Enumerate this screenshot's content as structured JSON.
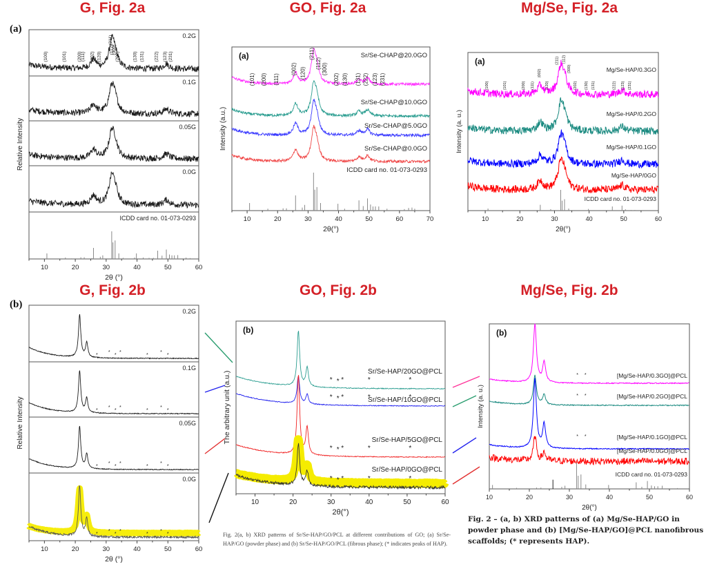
{
  "section_titles": {
    "g_2a": "G, Fig. 2a",
    "go_2a": "GO, Fig. 2a",
    "mgse_2a": "Mg/Se, Fig. 2a",
    "g_2b": "G, Fig. 2b",
    "go_2b": "GO, Fig. 2b",
    "mgse_2b": "Mg/Se, Fig. 2b"
  },
  "captions": {
    "go": "Fig. 2(a, b) XRD patterns of Sr/Se-HAP/GO/PCL at different contributions of GO; (a) Sr/Se-HAP/GO (powder phase) and (b) Sr/Se-HAP/GO/PCL (fibrous phase); (* indicates peaks of HAP).",
    "mgse": "Fig. 2 – (a, b) XRD patterns of (a) Mg/Se-HAP/GO in powder phase and (b) [Mg/Se-HAP/GO]@PCL nanofibrous scaffolds; (* represents HAP)."
  },
  "colors": {
    "title_red": "#d42027",
    "magenta": "#ff33ff",
    "teal": "#2a8f85",
    "blue": "#1f1fe6",
    "red": "#f01818",
    "highlight_yellow": "#f5ec00",
    "black": "#1a1a1a"
  },
  "chart_data": [
    {
      "id": "g_2a",
      "type": "line",
      "panel_label": "(a)",
      "xlabel": "2θ (°)",
      "ylabel": "Relative Intensity",
      "xlim": [
        5,
        60
      ],
      "xticks": [
        10,
        20,
        30,
        40,
        50,
        60
      ],
      "stacked_panels": true,
      "series": [
        {
          "name": "0.2G",
          "color": "#1a1a1a"
        },
        {
          "name": "0.1G",
          "color": "#1a1a1a"
        },
        {
          "name": "0.05G",
          "color": "#1a1a1a"
        },
        {
          "name": "0.0G",
          "color": "#1a1a1a"
        }
      ],
      "peaks": [
        {
          "x": 25.9,
          "h": 0.35
        },
        {
          "x": 31.8,
          "h": 1.0
        },
        {
          "x": 32.9,
          "h": 0.45
        },
        {
          "x": 49.5,
          "h": 0.2
        }
      ],
      "miller_indices": [
        {
          "label": "(100)",
          "x": 10.8
        },
        {
          "label": "(101)",
          "x": 16.8
        },
        {
          "label": "(200)",
          "x": 21.8
        },
        {
          "label": "(111)",
          "x": 22.9
        },
        {
          "label": "(002)",
          "x": 25.9
        },
        {
          "label": "(120)",
          "x": 28.1
        },
        {
          "label": "(211)",
          "x": 31.8
        },
        {
          "label": "(112)",
          "x": 32.2
        },
        {
          "label": "(300)",
          "x": 32.9
        },
        {
          "label": "(202)",
          "x": 34.1
        },
        {
          "label": "(130)",
          "x": 39.8
        },
        {
          "label": "(131)",
          "x": 42.0
        },
        {
          "label": "(222)",
          "x": 46.7
        },
        {
          "label": "(123)",
          "x": 49.5
        },
        {
          "label": "(231)",
          "x": 51.3
        }
      ],
      "reference": {
        "name": "ICDD card no. 01-073-0293",
        "lines": [
          {
            "x": 10.8,
            "i": 0.2
          },
          {
            "x": 16.8,
            "i": 0.05
          },
          {
            "x": 18.8,
            "i": 0.02
          },
          {
            "x": 21.8,
            "i": 0.06
          },
          {
            "x": 22.9,
            "i": 0.06
          },
          {
            "x": 25.4,
            "i": 0.03
          },
          {
            "x": 25.9,
            "i": 0.4
          },
          {
            "x": 28.1,
            "i": 0.08
          },
          {
            "x": 28.9,
            "i": 0.13
          },
          {
            "x": 31.8,
            "i": 1.0
          },
          {
            "x": 32.2,
            "i": 0.6
          },
          {
            "x": 32.9,
            "i": 0.67
          },
          {
            "x": 34.1,
            "i": 0.2
          },
          {
            "x": 35.5,
            "i": 0.04
          },
          {
            "x": 39.2,
            "i": 0.05
          },
          {
            "x": 39.8,
            "i": 0.2
          },
          {
            "x": 42.0,
            "i": 0.05
          },
          {
            "x": 43.9,
            "i": 0.04
          },
          {
            "x": 45.3,
            "i": 0.04
          },
          {
            "x": 46.7,
            "i": 0.3
          },
          {
            "x": 48.1,
            "i": 0.12
          },
          {
            "x": 49.5,
            "i": 0.34
          },
          {
            "x": 50.5,
            "i": 0.16
          },
          {
            "x": 51.3,
            "i": 0.13
          },
          {
            "x": 52.1,
            "i": 0.13
          },
          {
            "x": 53.2,
            "i": 0.14
          },
          {
            "x": 55.9,
            "i": 0.05
          },
          {
            "x": 57.2,
            "i": 0.03
          }
        ]
      }
    },
    {
      "id": "go_2a",
      "type": "line",
      "panel_label": "(a)",
      "xlabel": "2θ(°)",
      "ylabel": "Intensity (a.u.)",
      "xlim": [
        5,
        70
      ],
      "xticks": [
        10,
        20,
        30,
        40,
        50,
        60,
        70
      ],
      "series": [
        {
          "name": "Sr/Se-CHAP@20.0GO",
          "color": "#ff33ff"
        },
        {
          "name": "Sr/Se-CHAP@10.0GO",
          "color": "#2a9d90"
        },
        {
          "name": "Sr/Se-CHAP@5.0GO",
          "color": "#3a3aff"
        },
        {
          "name": "Sr/Se-CHAP@0.0GO",
          "color": "#f04848"
        }
      ],
      "peaks": [
        {
          "x": 25.9,
          "h": 0.4
        },
        {
          "x": 31.8,
          "h": 1.0
        },
        {
          "x": 32.9,
          "h": 0.5
        },
        {
          "x": 46.7,
          "h": 0.15
        },
        {
          "x": 49.5,
          "h": 0.2
        }
      ],
      "miller_indices": [
        {
          "label": "(101)",
          "x": 12.3
        },
        {
          "label": "(200)",
          "x": 16.1
        },
        {
          "label": "(111)",
          "x": 20.2
        },
        {
          "label": "(002)",
          "x": 25.9
        },
        {
          "label": "(120)",
          "x": 28.9
        },
        {
          "label": "(211)",
          "x": 31.8
        },
        {
          "label": "(112)",
          "x": 34.0
        },
        {
          "label": "(300)",
          "x": 36.0
        },
        {
          "label": "(202)",
          "x": 39.9
        },
        {
          "label": "(130)",
          "x": 42.7
        },
        {
          "label": "(131)",
          "x": 47.0
        },
        {
          "label": "(222)",
          "x": 49.5
        },
        {
          "label": "(123)",
          "x": 52.6
        },
        {
          "label": "(231)",
          "x": 55.0
        }
      ],
      "reference": {
        "name": "ICDD card no. 01-073-0293",
        "lines": [
          {
            "x": 10.8,
            "i": 0.2
          },
          {
            "x": 16.8,
            "i": 0.05
          },
          {
            "x": 21.8,
            "i": 0.06
          },
          {
            "x": 22.9,
            "i": 0.06
          },
          {
            "x": 25.9,
            "i": 0.4
          },
          {
            "x": 28.1,
            "i": 0.08
          },
          {
            "x": 28.9,
            "i": 0.15
          },
          {
            "x": 31.8,
            "i": 1.0
          },
          {
            "x": 32.2,
            "i": 0.55
          },
          {
            "x": 32.9,
            "i": 0.62
          },
          {
            "x": 34.1,
            "i": 0.2
          },
          {
            "x": 39.8,
            "i": 0.18
          },
          {
            "x": 42.0,
            "i": 0.05
          },
          {
            "x": 46.7,
            "i": 0.27
          },
          {
            "x": 48.1,
            "i": 0.12
          },
          {
            "x": 49.5,
            "i": 0.32
          },
          {
            "x": 50.5,
            "i": 0.16
          },
          {
            "x": 51.3,
            "i": 0.11
          },
          {
            "x": 52.1,
            "i": 0.11
          },
          {
            "x": 53.2,
            "i": 0.11
          },
          {
            "x": 55.9,
            "i": 0.05
          },
          {
            "x": 61.6,
            "i": 0.04
          },
          {
            "x": 63.0,
            "i": 0.07
          },
          {
            "x": 64.1,
            "i": 0.08
          },
          {
            "x": 65.0,
            "i": 0.05
          }
        ]
      }
    },
    {
      "id": "mgse_2a",
      "type": "line",
      "panel_label": "(a)",
      "xlabel": "2θ(°)",
      "ylabel": "Intensity (a. u.)",
      "xlim": [
        5,
        60
      ],
      "xticks": [
        10,
        20,
        30,
        40,
        50,
        60
      ],
      "series": [
        {
          "name": "Mg/Se-HAP/0.3GO",
          "color": "#ff00ff"
        },
        {
          "name": "Mg/Se-HAP/0.2GO",
          "color": "#1a8a80"
        },
        {
          "name": "Mg/Se-HAP/0.1GO",
          "color": "#0000ff"
        },
        {
          "name": "Mg/Se-HAP/0GO",
          "color": "#ff0000"
        }
      ],
      "peaks": [
        {
          "x": 25.9,
          "h": 0.35
        },
        {
          "x": 31.8,
          "h": 1.0
        },
        {
          "x": 32.9,
          "h": 0.5
        },
        {
          "x": 49.5,
          "h": 0.18
        }
      ],
      "miller_indices": [
        {
          "label": "(100)",
          "x": 10.8
        },
        {
          "label": "(101)",
          "x": 16.0
        },
        {
          "label": "(200)",
          "x": 21.3
        },
        {
          "label": "(111)",
          "x": 23.9
        },
        {
          "label": "(002)",
          "x": 25.9
        },
        {
          "label": "(120)",
          "x": 28.1
        },
        {
          "label": "(211)",
          "x": 31.0
        },
        {
          "label": "(112)",
          "x": 33.0
        },
        {
          "label": "(300)",
          "x": 34.5
        },
        {
          "label": "(202)",
          "x": 36.3
        },
        {
          "label": "(130)",
          "x": 39.5
        },
        {
          "label": "(131)",
          "x": 41.5
        },
        {
          "label": "(222)",
          "x": 47.5
        },
        {
          "label": "(123)",
          "x": 50.0
        },
        {
          "label": "(231)",
          "x": 52.0
        }
      ],
      "reference": {
        "name": "ICDD card no. 01-073-0293",
        "lines": [
          {
            "x": 10.8,
            "i": 0.1
          },
          {
            "x": 25.9,
            "i": 0.28
          },
          {
            "x": 28.9,
            "i": 0.07
          },
          {
            "x": 31.8,
            "i": 1.0
          },
          {
            "x": 32.2,
            "i": 0.48
          },
          {
            "x": 32.9,
            "i": 0.55
          },
          {
            "x": 34.1,
            "i": 0.1
          },
          {
            "x": 39.8,
            "i": 0.08
          },
          {
            "x": 46.7,
            "i": 0.2
          },
          {
            "x": 49.5,
            "i": 0.24
          },
          {
            "x": 50.5,
            "i": 0.06
          },
          {
            "x": 52.1,
            "i": 0.03
          },
          {
            "x": 53.2,
            "i": 0.03
          }
        ]
      }
    },
    {
      "id": "g_2b",
      "type": "line",
      "panel_label": "(b)",
      "xlabel": "2θ (°)",
      "ylabel": "Relative Intensity",
      "xlim": [
        5,
        60
      ],
      "xticks": [
        10,
        20,
        30,
        40,
        50,
        60
      ],
      "stacked_panels": true,
      "series": [
        {
          "name": "0.2G",
          "color": "#1a1a1a"
        },
        {
          "name": "0.1G",
          "color": "#1a1a1a"
        },
        {
          "name": "0.05G",
          "color": "#1a1a1a"
        },
        {
          "name": "0.0G",
          "color": "#1a1a1a",
          "highlight": "#f5ec00"
        }
      ],
      "peaks": [
        {
          "x": 21.4,
          "h": 1.0
        },
        {
          "x": 23.7,
          "h": 0.35
        }
      ],
      "hap_markers_x": [
        27.0,
        31.0,
        33.0,
        34.6,
        43.3,
        47.8,
        50.0
      ],
      "hap_marker_symbol": "*"
    },
    {
      "id": "go_2b",
      "type": "line",
      "panel_label": "(b)",
      "xlabel": "2θ(°)",
      "ylabel": "The arbitrary unit (a.u.)",
      "xlim": [
        5,
        60
      ],
      "xticks": [
        10,
        20,
        30,
        40,
        50,
        60
      ],
      "series": [
        {
          "name": "Sr/Se-HAP/20GO@PCL",
          "color": "#2a9d90"
        },
        {
          "name": "Sr/Se-HAP/10GO@PCL",
          "color": "#2222ee"
        },
        {
          "name": "Sr/Se-HAP/5GO@PCL",
          "color": "#f02020"
        },
        {
          "name": "Sr/Se-HAP/0GO@PCL",
          "color": "#333333",
          "highlight": "#f5ec00"
        }
      ],
      "peaks": [
        {
          "x": 21.4,
          "h": 1.0
        },
        {
          "x": 23.7,
          "h": 0.35
        }
      ],
      "hap_markers_x": [
        30.0,
        31.8,
        33.0,
        40.0,
        50.8
      ],
      "hap_marker_symbol": "*"
    },
    {
      "id": "mgse_2b",
      "type": "line",
      "panel_label": "(b)",
      "xlabel": "2θ(°)",
      "ylabel": "Intensity (a. u.)",
      "xlim": [
        10,
        60
      ],
      "xticks": [
        10,
        20,
        30,
        40,
        50,
        60
      ],
      "series": [
        {
          "name": "[Mg/Se-HAP/0.3GO]@PCL",
          "color": "#ff00ff"
        },
        {
          "name": "[Mg/Se-HAP/0.2GO]@PCL",
          "color": "#1a8a80"
        },
        {
          "name": "[Mg/Se-HAP/0.1GO]@PCL",
          "color": "#0000ff"
        },
        {
          "name": "[Mg/Se-HAP/0.0GO]@PCL",
          "color": "#ff0000"
        }
      ],
      "peaks": [
        {
          "x": 21.4,
          "h": 1.0
        },
        {
          "x": 23.7,
          "h": 0.35
        }
      ],
      "hap_markers_x": [
        32.0,
        34.0
      ],
      "hap_marker_symbol": "*",
      "reference": {
        "name": "ICDD card no. 01-073-0293",
        "lines": [
          {
            "x": 10.8,
            "i": 0.15
          },
          {
            "x": 16.8,
            "i": 0.04
          },
          {
            "x": 21.8,
            "i": 0.05
          },
          {
            "x": 22.9,
            "i": 0.05
          },
          {
            "x": 25.9,
            "i": 0.35
          },
          {
            "x": 28.1,
            "i": 0.08
          },
          {
            "x": 28.9,
            "i": 0.12
          },
          {
            "x": 31.8,
            "i": 1.0
          },
          {
            "x": 32.2,
            "i": 0.5
          },
          {
            "x": 32.9,
            "i": 0.55
          },
          {
            "x": 34.1,
            "i": 0.17
          },
          {
            "x": 39.8,
            "i": 0.15
          },
          {
            "x": 46.7,
            "i": 0.25
          },
          {
            "x": 48.1,
            "i": 0.08
          },
          {
            "x": 49.5,
            "i": 0.3
          },
          {
            "x": 50.5,
            "i": 0.13
          },
          {
            "x": 51.3,
            "i": 0.1
          },
          {
            "x": 52.1,
            "i": 0.1
          },
          {
            "x": 53.2,
            "i": 0.12
          },
          {
            "x": 57.0,
            "i": 0.03
          }
        ]
      }
    }
  ],
  "connectors": {
    "left": [
      {
        "color": "#2a9d6f"
      },
      {
        "color": "#2222ee"
      },
      {
        "color": "#e23030"
      },
      {
        "color": "#111111"
      }
    ],
    "right": [
      {
        "color": "#ff3399"
      },
      {
        "color": "#2a9d6f"
      },
      {
        "color": "#2222ee"
      },
      {
        "color": "#e23030"
      }
    ]
  }
}
